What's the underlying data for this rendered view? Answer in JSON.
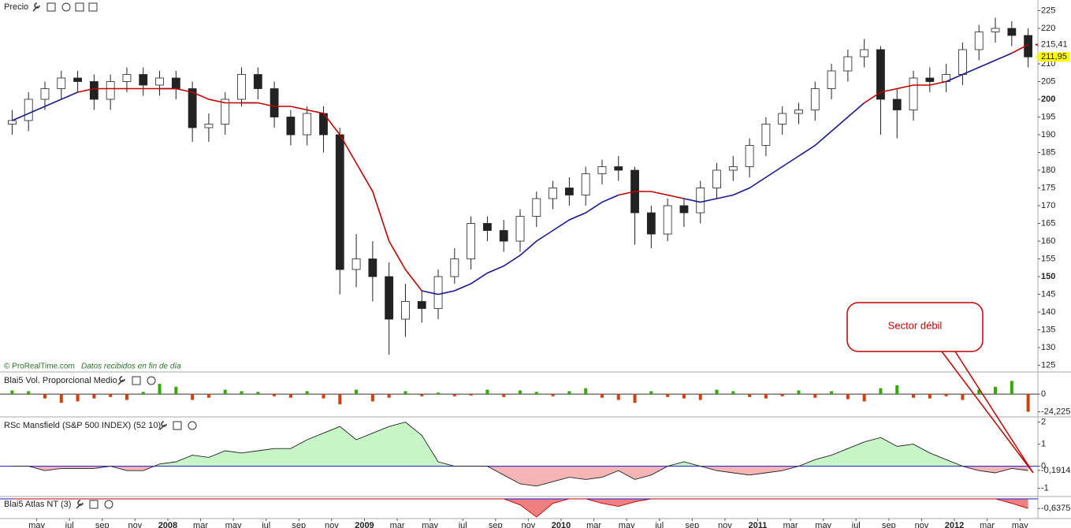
{
  "chart_data": [
    {
      "type": "candlestick",
      "title": "Precio",
      "credit": "© ProRealTime.com",
      "note": "Datos recibidos en fin de día",
      "annotation": "Sector débil",
      "categories": [
        null,
        null,
        "may",
        null,
        "jul",
        null,
        "sep",
        null,
        "nov",
        null,
        "2008",
        null,
        "mar",
        null,
        "may",
        null,
        "jul",
        null,
        "sep",
        null,
        "nov",
        null,
        "2009",
        null,
        "mar",
        null,
        "may",
        null,
        "jul",
        null,
        "sep",
        null,
        "nov",
        null,
        "2010",
        null,
        "mar",
        null,
        "may",
        null,
        "jul",
        null,
        "sep",
        null,
        "nov",
        null,
        "2011",
        null,
        "mar",
        null,
        "may",
        null,
        "jul",
        null,
        "sep",
        null,
        "nov",
        null,
        "2012",
        null,
        "mar",
        null,
        "may"
      ],
      "open": [
        193,
        194,
        200,
        203,
        206,
        205,
        200,
        205,
        207,
        204,
        206,
        203,
        192,
        193,
        200,
        207,
        203,
        195,
        190,
        196,
        190,
        152,
        155,
        150,
        138,
        143,
        141,
        150,
        155,
        165,
        163,
        160,
        167,
        172,
        175,
        173,
        179,
        181,
        180,
        168,
        162,
        170,
        168,
        175,
        180,
        181,
        187,
        193,
        196,
        197,
        203,
        208,
        212,
        214,
        200,
        197,
        206,
        205,
        207,
        214,
        219,
        220,
        218
      ],
      "high": [
        197,
        202,
        205,
        208,
        208,
        207,
        207,
        209,
        209,
        208,
        208,
        205,
        196,
        202,
        209,
        209,
        205,
        197,
        198,
        198,
        192,
        162,
        160,
        154,
        148,
        146,
        152,
        158,
        167,
        167,
        166,
        169,
        174,
        177,
        178,
        181,
        183,
        184,
        181,
        170,
        172,
        172,
        177,
        182,
        184,
        189,
        195,
        198,
        199,
        205,
        210,
        214,
        217,
        215,
        203,
        208,
        209,
        210,
        216,
        221,
        223,
        222,
        220
      ],
      "low": [
        190,
        191,
        197,
        200,
        202,
        197,
        197,
        202,
        201,
        201,
        200,
        188,
        188,
        190,
        198,
        200,
        192,
        187,
        187,
        185,
        145,
        147,
        143,
        128,
        133,
        137,
        138,
        148,
        152,
        160,
        157,
        157,
        164,
        169,
        170,
        170,
        176,
        177,
        159,
        158,
        160,
        164,
        165,
        172,
        177,
        178,
        184,
        190,
        193,
        194,
        200,
        205,
        209,
        190,
        189,
        194,
        202,
        202,
        204,
        211,
        216,
        215,
        209
      ],
      "close": [
        194,
        200,
        203,
        206,
        205,
        200,
        205,
        207,
        204,
        206,
        203,
        192,
        193,
        200,
        207,
        203,
        195,
        190,
        196,
        190,
        152,
        155,
        150,
        138,
        143,
        141,
        150,
        155,
        165,
        163,
        160,
        167,
        172,
        175,
        173,
        179,
        181,
        180,
        168,
        162,
        170,
        168,
        175,
        180,
        181,
        187,
        193,
        196,
        197,
        203,
        208,
        212,
        214,
        200,
        197,
        206,
        205,
        207,
        214,
        219,
        220,
        218,
        211.95
      ],
      "up_color": "#ffffff",
      "down_color": "#222222",
      "overlays": [
        {
          "color": "#1a1a8c",
          "values": [
            194,
            196,
            198,
            200,
            202,
            null,
            null,
            null,
            null,
            203,
            203,
            null,
            null,
            null,
            199,
            199,
            null,
            null,
            null,
            null,
            null,
            null,
            null,
            null,
            null,
            146,
            145,
            146,
            148,
            151,
            153,
            156,
            160,
            163,
            166,
            168,
            171,
            173,
            null,
            null,
            null,
            172,
            171,
            172,
            173,
            175,
            178,
            181,
            184,
            187,
            191,
            195,
            199,
            null,
            null,
            null,
            null,
            205,
            207,
            209,
            211,
            213,
            null
          ]
        },
        {
          "color": "#c00000",
          "values": [
            null,
            null,
            null,
            null,
            202,
            203,
            203,
            203,
            203,
            203,
            203,
            202,
            200,
            199,
            199,
            199,
            198,
            198,
            197,
            196,
            190,
            182,
            174,
            160,
            152,
            146,
            null,
            null,
            null,
            null,
            null,
            null,
            null,
            null,
            null,
            null,
            null,
            173,
            174,
            174,
            173,
            172,
            null,
            null,
            null,
            null,
            null,
            null,
            null,
            null,
            null,
            null,
            199,
            202,
            203,
            204,
            204,
            205,
            null,
            null,
            null,
            213,
            215.41
          ]
        }
      ],
      "price_tags": [
        {
          "value": 215.41,
          "label": "215,41",
          "color": "#c00000"
        },
        {
          "value": 211.95,
          "label": "211,95",
          "color": "#ffff00"
        }
      ],
      "ylim": [
        124,
        228
      ],
      "yticks": [
        125,
        130,
        135,
        140,
        145,
        150,
        155,
        160,
        165,
        170,
        175,
        180,
        185,
        190,
        195,
        200,
        205,
        210,
        215,
        220,
        225
      ]
    },
    {
      "type": "bar",
      "title": "Blai5 Vol. Proporcional Medio",
      "values": [
        5,
        4,
        -6,
        -12,
        -10,
        -6,
        -4,
        -8,
        3,
        14,
        10,
        -8,
        -5,
        6,
        4,
        3,
        -3,
        -5,
        4,
        -6,
        -14,
        6,
        -10,
        -5,
        4,
        -3,
        2,
        -3,
        -2,
        6,
        -4,
        5,
        3,
        -3,
        4,
        8,
        -5,
        -8,
        -12,
        4,
        -4,
        -6,
        -8,
        6,
        4,
        -4,
        -6,
        -3,
        5,
        -5,
        4,
        -7,
        -10,
        8,
        12,
        -5,
        -6,
        -3,
        -8,
        6,
        10,
        18,
        -24.225
      ],
      "pos_color": "#33aa00",
      "neg_color": "#d04010",
      "ylim": [
        -28,
        26
      ],
      "yticks": [
        0,
        {
          "value": -24.225,
          "label": "-24,225"
        }
      ]
    },
    {
      "type": "area",
      "title": "RSc Mansfield (S&P 500 INDEX) (52 10)",
      "values": [
        0,
        0,
        -0.2,
        -0.1,
        -0.1,
        -0.1,
        0,
        -0.2,
        -0.2,
        0.1,
        0.2,
        0.5,
        0.4,
        0.7,
        0.6,
        0.7,
        0.8,
        0.8,
        1.2,
        1.5,
        1.8,
        1.2,
        1.5,
        1.8,
        2,
        1.4,
        0.2,
        0,
        0,
        0,
        -0.4,
        -0.8,
        -0.9,
        -0.7,
        -0.5,
        -0.6,
        -0.5,
        -0.2,
        -0.6,
        -0.4,
        0,
        0.2,
        0,
        -0.2,
        -0.3,
        -0.4,
        -0.3,
        -0.2,
        0,
        0.3,
        0.5,
        0.8,
        1.1,
        1.3,
        0.9,
        1,
        0.6,
        0.3,
        0,
        -0.2,
        -0.3,
        -0.1,
        -0.1914
      ],
      "pos_color": "#c8f5c8",
      "neg_color": "#f5b5b5",
      "line_color": "#222222",
      "ylim": [
        -1.3,
        2.2
      ],
      "yticks": [
        2,
        1,
        0,
        -1,
        {
          "value": -0.1914,
          "label": "-0,1914"
        }
      ]
    },
    {
      "type": "area",
      "title": "Blai5 Atlas NT (3)",
      "values": [
        0,
        0,
        0,
        0,
        0,
        0,
        0,
        0,
        0,
        0,
        0,
        0,
        0,
        0,
        0,
        0,
        0,
        0,
        0,
        0,
        0,
        0,
        0,
        0,
        0,
        0,
        0,
        0,
        0,
        0,
        0,
        -0.4,
        -1.2,
        -0.3,
        0,
        0,
        -0.3,
        -0.5,
        -0.2,
        0,
        0,
        0,
        0,
        0,
        0,
        0,
        0,
        0,
        0,
        0,
        0,
        0,
        0,
        0,
        0,
        0,
        0,
        0,
        0,
        0,
        0,
        -0.3,
        -0.6375
      ],
      "pos_color": "#c8f5c8",
      "neg_color": "#f08080",
      "line_color": "#c00000",
      "ylim": [
        -1.3,
        0.05
      ],
      "yticks": [
        {
          "value": -0.6375,
          "label": "-0,6375"
        }
      ]
    }
  ]
}
